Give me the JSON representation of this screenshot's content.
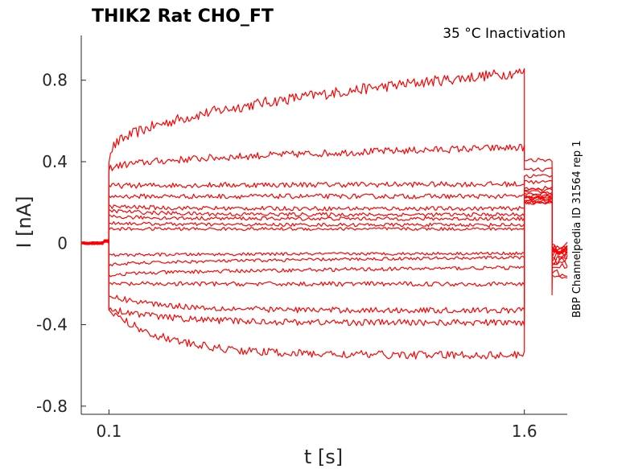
{
  "chart_data": {
    "type": "line",
    "title": "THIK2  Rat  CHO_FT",
    "annotation": "35 °C  Inactivation",
    "side_label": "BBP Channelpedia ID 31564 rep 1",
    "xlabel": "t [s]",
    "ylabel": "I [nA]",
    "xlim": [
      0.0,
      1.755
    ],
    "ylim": [
      -0.84,
      1.02
    ],
    "xticks": [
      0.1,
      1.6
    ],
    "xtick_labels": [
      "0.1",
      "1.6"
    ],
    "yticks": [
      -0.8,
      -0.4,
      0,
      0.4,
      0.8
    ],
    "ytick_labels": [
      "-0.8",
      "-0.4",
      "0",
      "0.4",
      "0.8"
    ],
    "grid": false,
    "color": "#ff0000",
    "step_start": 0.1,
    "step_end": 1.6,
    "series": [
      {
        "start": 0.42,
        "end": 0.84,
        "after": 0.41,
        "tail": -0.08
      },
      {
        "start": 0.36,
        "end": 0.47,
        "after": 0.36,
        "tail": -0.05
      },
      {
        "start": 0.28,
        "end": 0.29,
        "after": 0.33,
        "tail": -0.03
      },
      {
        "start": 0.23,
        "end": 0.23,
        "after": 0.3,
        "tail": -0.03
      },
      {
        "start": 0.18,
        "end": 0.17,
        "after": 0.27,
        "tail": -0.04
      },
      {
        "start": 0.16,
        "end": 0.14,
        "after": 0.26,
        "tail": -0.02
      },
      {
        "start": 0.13,
        "end": 0.12,
        "after": 0.25,
        "tail": -0.03
      },
      {
        "start": 0.1,
        "end": 0.09,
        "after": 0.24,
        "tail": -0.02
      },
      {
        "start": 0.07,
        "end": 0.07,
        "after": 0.23,
        "tail": -0.04
      },
      {
        "start": -0.06,
        "end": -0.05,
        "after": 0.23,
        "tail": -0.05
      },
      {
        "start": -0.11,
        "end": -0.07,
        "after": 0.22,
        "tail": -0.06
      },
      {
        "start": -0.16,
        "end": -0.12,
        "after": 0.22,
        "tail": -0.08
      },
      {
        "start": -0.2,
        "end": -0.2,
        "after": 0.21,
        "tail": -0.1
      },
      {
        "start": -0.26,
        "end": -0.33,
        "after": 0.21,
        "tail": -0.12
      },
      {
        "start": -0.32,
        "end": -0.39,
        "after": 0.2,
        "tail": -0.14
      },
      {
        "start": -0.33,
        "end": -0.55,
        "after": 0.2,
        "tail": -0.16
      }
    ]
  }
}
